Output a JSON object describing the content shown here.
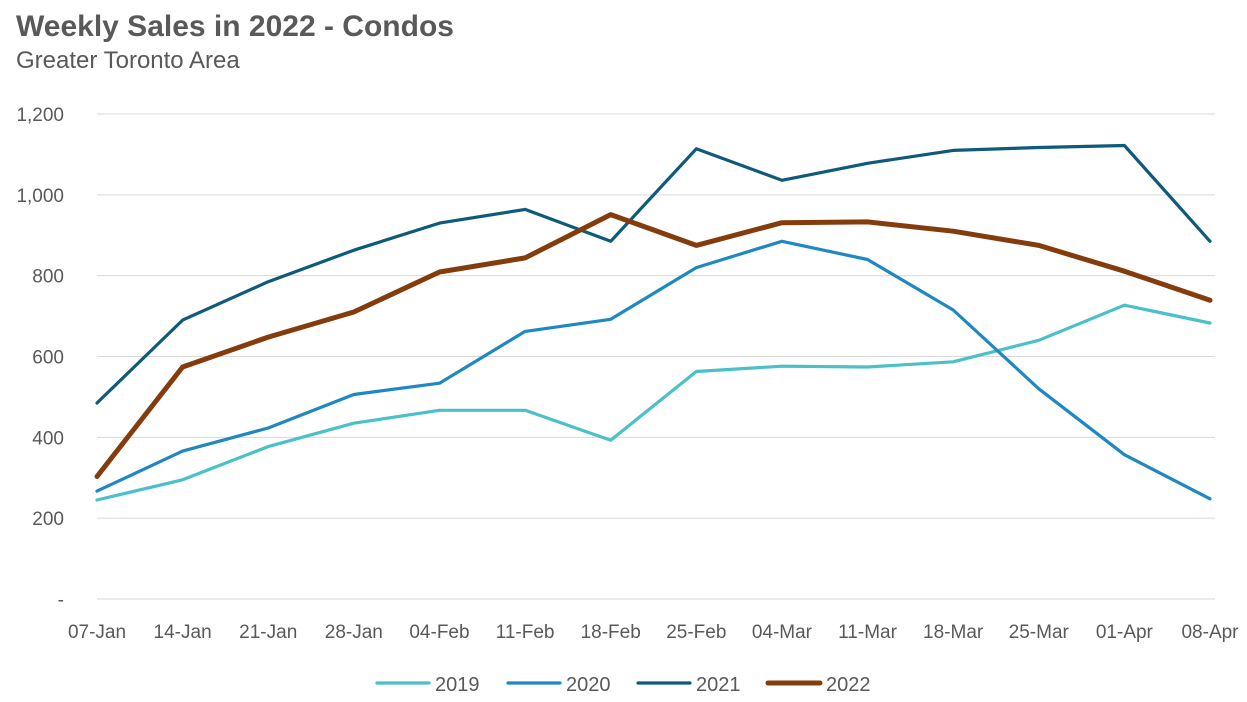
{
  "title": "Weekly Sales in 2022 - Condos",
  "subtitle": "Greater Toronto Area",
  "chart_data": {
    "type": "line",
    "title": "Weekly Sales in 2022 - Condos",
    "subtitle": "Greater Toronto Area",
    "xlabel": "",
    "ylabel": "",
    "categories": [
      "07-Jan",
      "14-Jan",
      "21-Jan",
      "28-Jan",
      "04-Feb",
      "11-Feb",
      "18-Feb",
      "25-Feb",
      "04-Mar",
      "11-Mar",
      "18-Mar",
      "25-Mar",
      "01-Apr",
      "08-Apr"
    ],
    "ylim": [
      0,
      1200
    ],
    "yticks": [
      0,
      200,
      400,
      600,
      800,
      1000,
      1200
    ],
    "ytick_labels": [
      "-",
      "200",
      "400",
      "600",
      "800",
      "1,000",
      "1,200"
    ],
    "grid": true,
    "legend_position": "bottom",
    "series": [
      {
        "name": "2019",
        "color": "#4BC0C8",
        "values": [
          245,
          295,
          377,
          435,
          467,
          467,
          393,
          563,
          576,
          574,
          587,
          640,
          727,
          683
        ]
      },
      {
        "name": "2020",
        "color": "#1F88C0",
        "values": [
          267,
          366,
          423,
          506,
          534,
          662,
          692,
          820,
          885,
          840,
          715,
          520,
          357,
          248
        ]
      },
      {
        "name": "2021",
        "color": "#0E5A7A",
        "values": [
          485,
          690,
          785,
          863,
          930,
          964,
          885,
          1114,
          1036,
          1078,
          1110,
          1117,
          1122,
          885
        ]
      },
      {
        "name": "2022",
        "color": "#843C0C",
        "values": [
          303,
          574,
          648,
          710,
          809,
          844,
          951,
          875,
          931,
          933,
          910,
          875,
          811,
          739
        ]
      }
    ]
  }
}
